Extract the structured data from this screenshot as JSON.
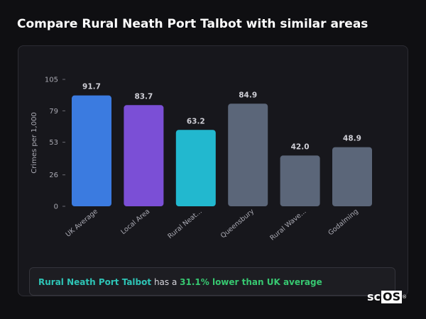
{
  "page": {
    "title": "Compare Rural Neath Port Talbot with similar areas"
  },
  "callout": {
    "area": "Rural Neath Port Talbot",
    "middle": " has a ",
    "difference": "31.1% lower than UK average"
  },
  "logo": {
    "prefix": "sc",
    "boxed": "OS",
    "reg": "®"
  },
  "chart_data": {
    "type": "bar",
    "ylabel": "Crimes per 1,000",
    "xlabel": "",
    "ylim": [
      0,
      105
    ],
    "yticks": [
      0,
      26,
      53,
      79,
      105
    ],
    "categories": [
      "UK Average",
      "Local Area",
      "Rural Neat...",
      "Queensbury",
      "Rural Wave...",
      "Godalming"
    ],
    "values": [
      91.7,
      83.7,
      63.2,
      84.9,
      42.0,
      48.9
    ],
    "value_labels": [
      "91.7",
      "83.7",
      "63.2",
      "84.9",
      "42.0",
      "48.9"
    ],
    "colors": [
      "#3b7be0",
      "#7b4fd6",
      "#22b8cf",
      "#5b6679",
      "#5b6679",
      "#5b6679"
    ],
    "grid": false,
    "legend": "none"
  }
}
